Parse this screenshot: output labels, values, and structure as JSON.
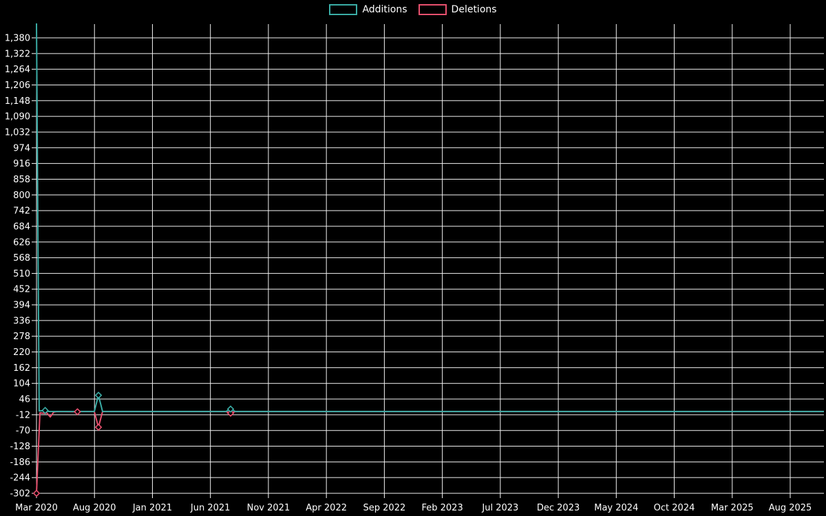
{
  "legend": {
    "items": [
      {
        "label": "Additions",
        "color": "#3aada6"
      },
      {
        "label": "Deletions",
        "color": "#e8506e"
      }
    ]
  },
  "chart_data": {
    "type": "line",
    "title": "",
    "background": "#000000",
    "grid": true,
    "grid_color": "#f2f2f2",
    "text_color": "#ffffff",
    "legend_position": "top-center",
    "x_axis": {
      "tick_labels": [
        "Mar 2020",
        "Aug 2020",
        "Jan 2021",
        "Jun 2021",
        "Nov 2021",
        "Apr 2022",
        "Sep 2022",
        "Feb 2023",
        "Jul 2023",
        "Dec 2023",
        "May 2024",
        "Oct 2024",
        "Mar 2025",
        "Aug 2025"
      ]
    },
    "y_axis": {
      "tick_labels": [
        "1,380",
        "1,322",
        "1,264",
        "1,206",
        "1,148",
        "1,090",
        "1,032",
        "974",
        "916",
        "858",
        "800",
        "742",
        "684",
        "626",
        "568",
        "510",
        "452",
        "394",
        "336",
        "278",
        "220",
        "162",
        "104",
        "46",
        "-12",
        "-70",
        "-128",
        "-186",
        "-244",
        "-302"
      ],
      "interval": 58,
      "min": -302,
      "max": 1438
    },
    "series": [
      {
        "name": "Additions",
        "color": "#3aada6",
        "points": [
          [
            0,
            1438
          ],
          [
            0.0034,
            2
          ],
          [
            0.011,
            4
          ],
          [
            0.0136,
            1
          ],
          [
            0.0175,
            0
          ],
          [
            0.0734,
            0
          ],
          [
            0.0787,
            60
          ],
          [
            0.0839,
            0
          ],
          [
            0.2404,
            0
          ],
          [
            0.2465,
            9
          ],
          [
            0.2526,
            0
          ],
          [
            1,
            0
          ]
        ],
        "markers": [
          [
            0.011,
            4
          ],
          [
            0.0787,
            60
          ],
          [
            0.2465,
            9
          ]
        ]
      },
      {
        "name": "Deletions",
        "color": "#e8506e",
        "points": [
          [
            0,
            -302
          ],
          [
            0.0044,
            -5
          ],
          [
            0.011,
            -7
          ],
          [
            0.0131,
            -5
          ],
          [
            0.0175,
            -20
          ],
          [
            0.0219,
            -2
          ],
          [
            0.026,
            0
          ],
          [
            0.052,
            -1
          ],
          [
            0.056,
            0
          ],
          [
            0.0734,
            0
          ],
          [
            0.0787,
            -58
          ],
          [
            0.0839,
            0
          ],
          [
            0.2404,
            0
          ],
          [
            0.2465,
            -6
          ],
          [
            0.2526,
            0
          ],
          [
            1,
            0
          ]
        ],
        "markers": [
          [
            0,
            -302
          ],
          [
            0.052,
            -1
          ],
          [
            0.0787,
            -58
          ],
          [
            0.2465,
            -6
          ]
        ]
      }
    ]
  }
}
